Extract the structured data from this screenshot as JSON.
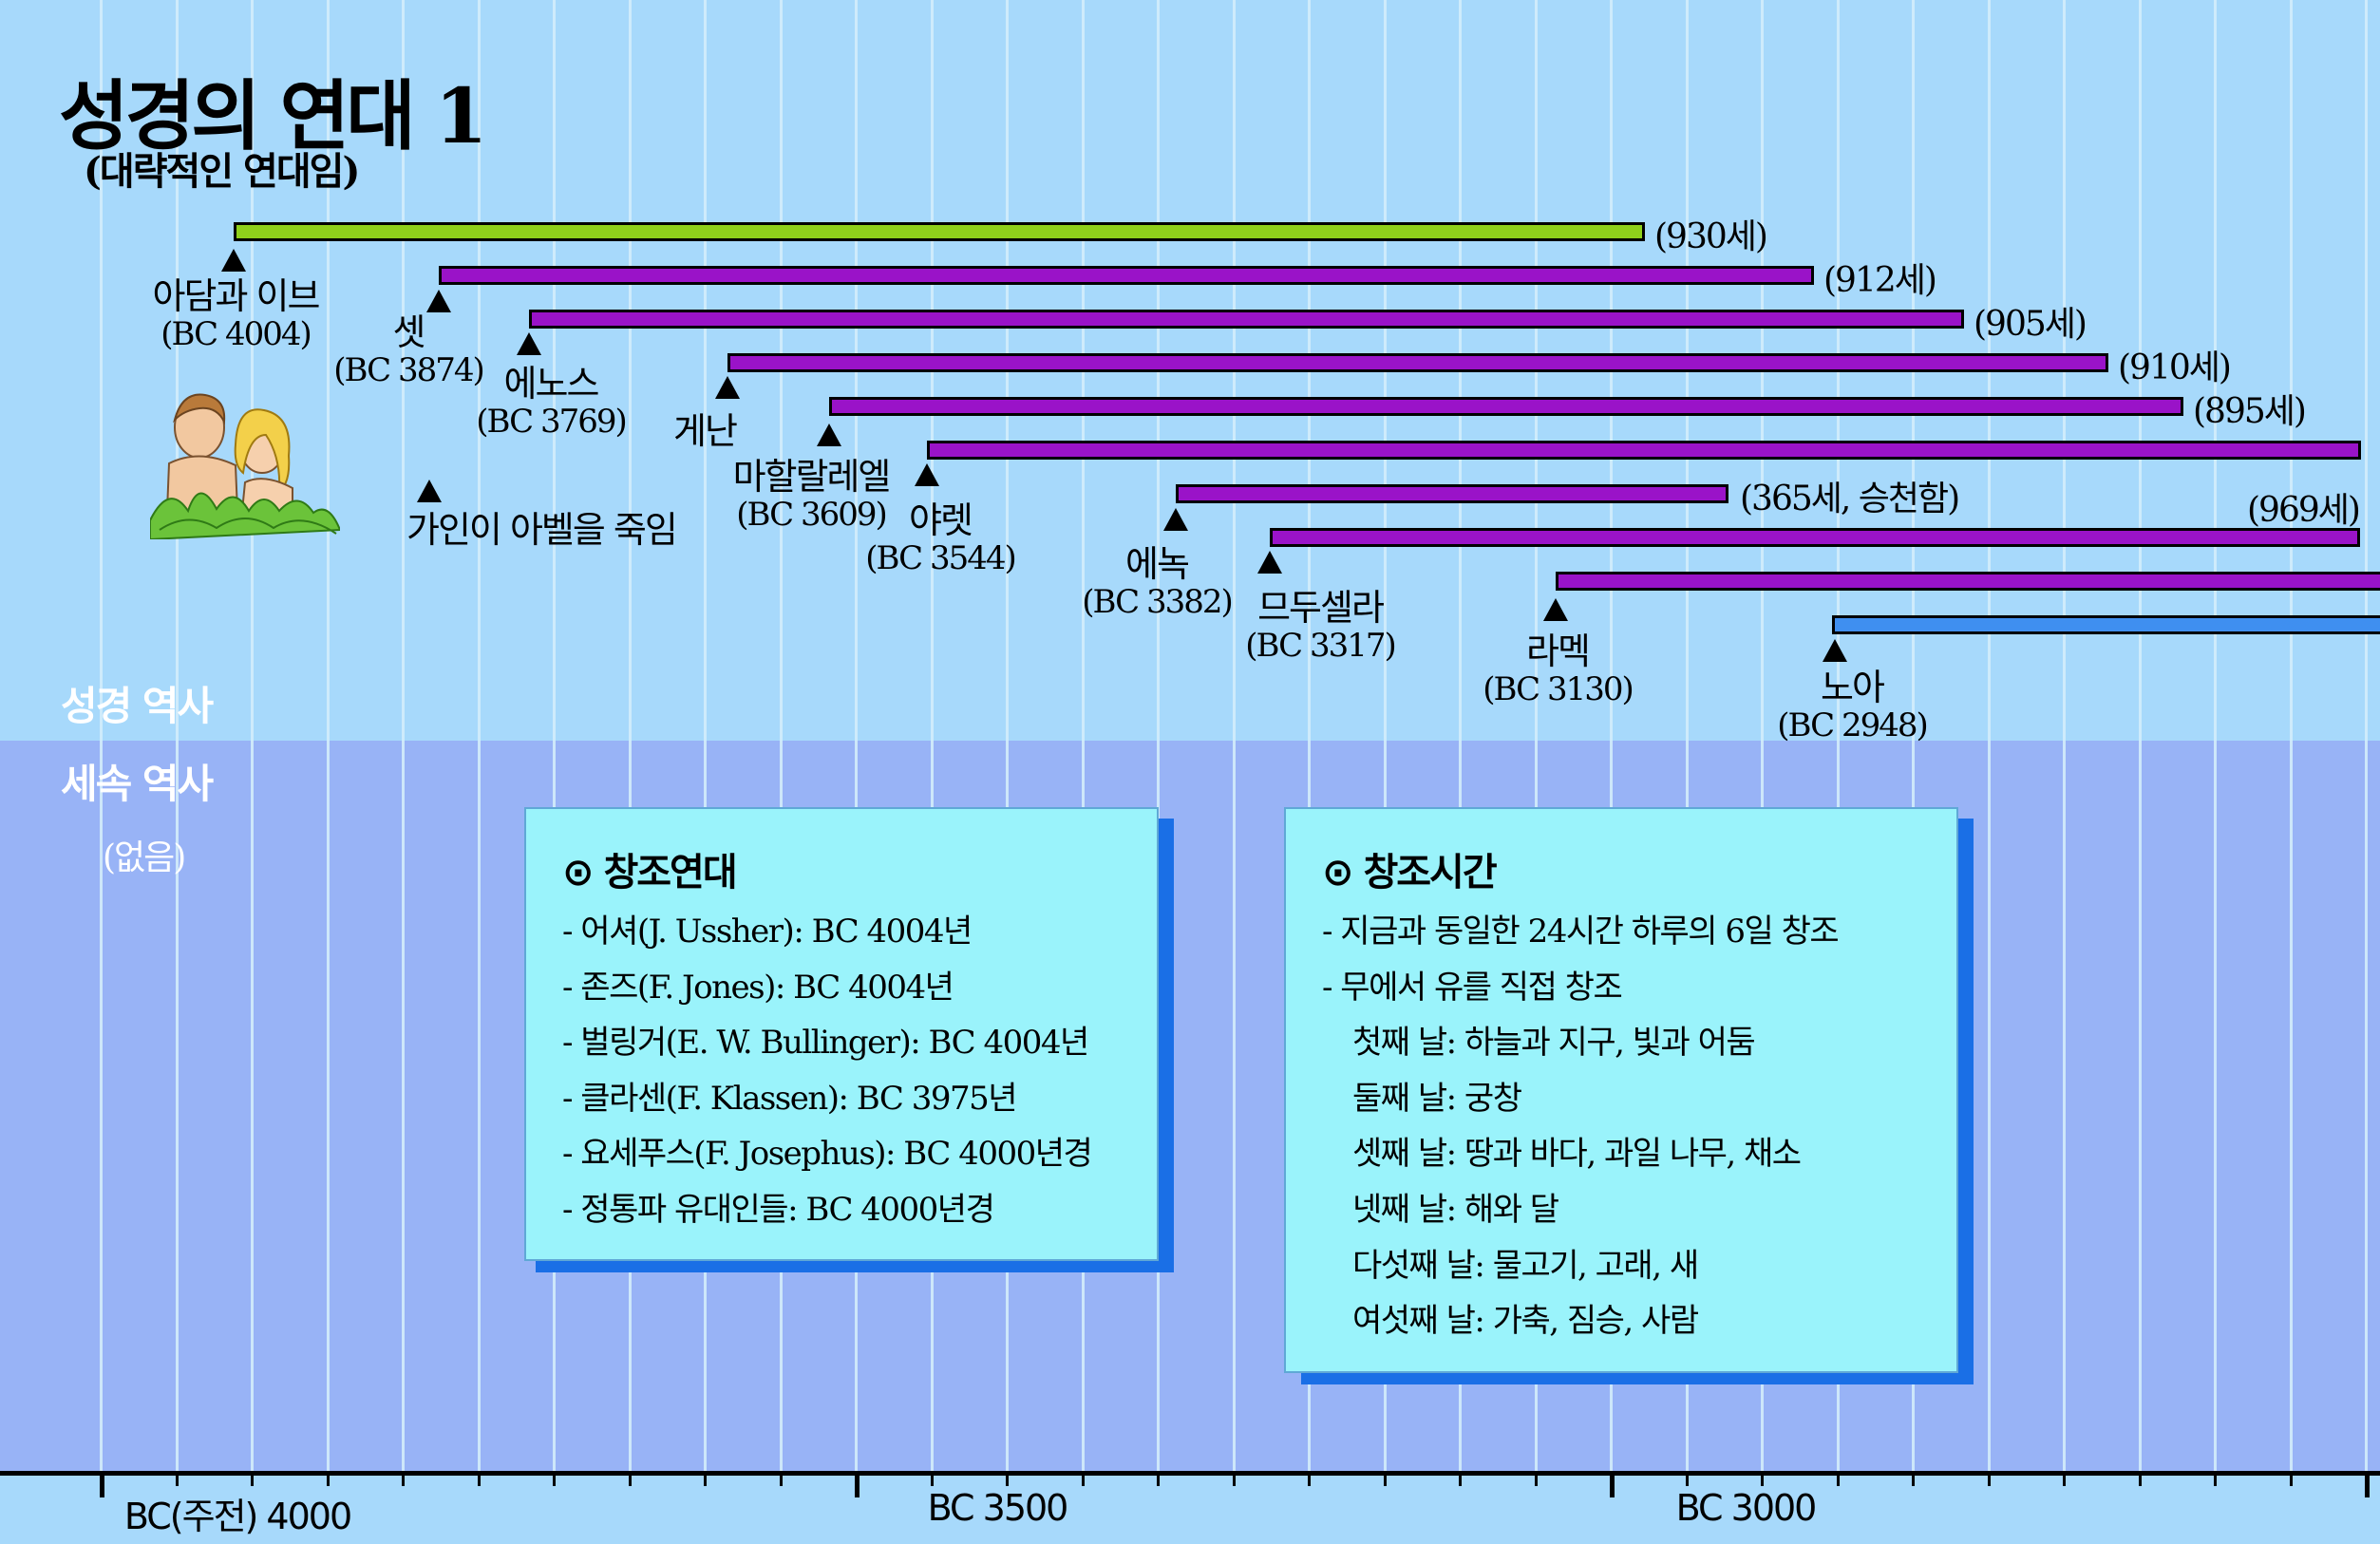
{
  "title": "성경의 연대 1",
  "subtitle": "(대략적인 연대임)",
  "section_labels": {
    "bible": "성경 역사",
    "secular": "세속 역사",
    "secular_none": "(없음)"
  },
  "axis_labels": [
    "BC(주전) 4000",
    "BC 3500",
    "BC 3000"
  ],
  "colors": {
    "bible_bg": "#a7d9fb",
    "secular_bg": "#98b3f6",
    "adam_bar": "#8fd11b",
    "patriarch_bar": "#9a13c8",
    "noah_bar": "#3f8ff0",
    "box_bg": "#9af3fb",
    "box_shadow": "#1a6fe6"
  },
  "patriarchs": [
    {
      "name": "아담과 이브",
      "year": "(BC 4004)",
      "age": "(930세)",
      "color": "green"
    },
    {
      "name": "셋",
      "year": "(BC 3874)",
      "age": "(912세)",
      "color": "purple"
    },
    {
      "name": "에노스",
      "year": "(BC 3769)",
      "age": "(905세)",
      "color": "purple"
    },
    {
      "name": "게난",
      "year": "",
      "age": "(910세)",
      "color": "purple"
    },
    {
      "name": "마할랄레엘",
      "year": "(BC 3609)",
      "age": "(895세)",
      "color": "purple"
    },
    {
      "name": "야렛",
      "year": "(BC 3544)",
      "age": "",
      "color": "purple"
    },
    {
      "name": "에녹",
      "year": "(BC 3382)",
      "age": "(365세, 승천함)",
      "color": "purple"
    },
    {
      "name": "므두셀라",
      "year": "(BC 3317)",
      "age": "(969세)",
      "color": "purple"
    },
    {
      "name": "라멕",
      "year": "(BC 3130)",
      "age": "",
      "color": "purple"
    },
    {
      "name": "노아",
      "year": "(BC 2948)",
      "age": "",
      "color": "blue"
    }
  ],
  "event": {
    "label": "가인이 아벨을 죽임"
  },
  "creation_dates": {
    "title": "⊙ 창조연대",
    "lines": [
      "- 어셔(J. Ussher): BC 4004년",
      "- 존즈(F. Jones): BC 4004년",
      "- 벌링거(E. W. Bullinger): BC 4004년",
      "- 클라센(F. Klassen): BC 3975년",
      "- 요세푸스(F. Josephus): BC 4000년경",
      "- 정통파 유대인들: BC 4000년경"
    ]
  },
  "creation_time": {
    "title": "⊙ 창조시간",
    "lines": [
      "- 지금과 동일한 24시간 하루의 6일 창조",
      "- 무에서 유를 직접 창조"
    ],
    "days": [
      "첫째 날: 하늘과 지구, 빛과 어둠",
      "둘째 날: 궁창",
      "셋째 날: 땅과 바다, 과일 나무, 채소",
      "넷째 날: 해와 달",
      "다섯째 날: 물고기, 고래, 새",
      "여섯째 날: 가축, 짐승, 사람"
    ]
  }
}
